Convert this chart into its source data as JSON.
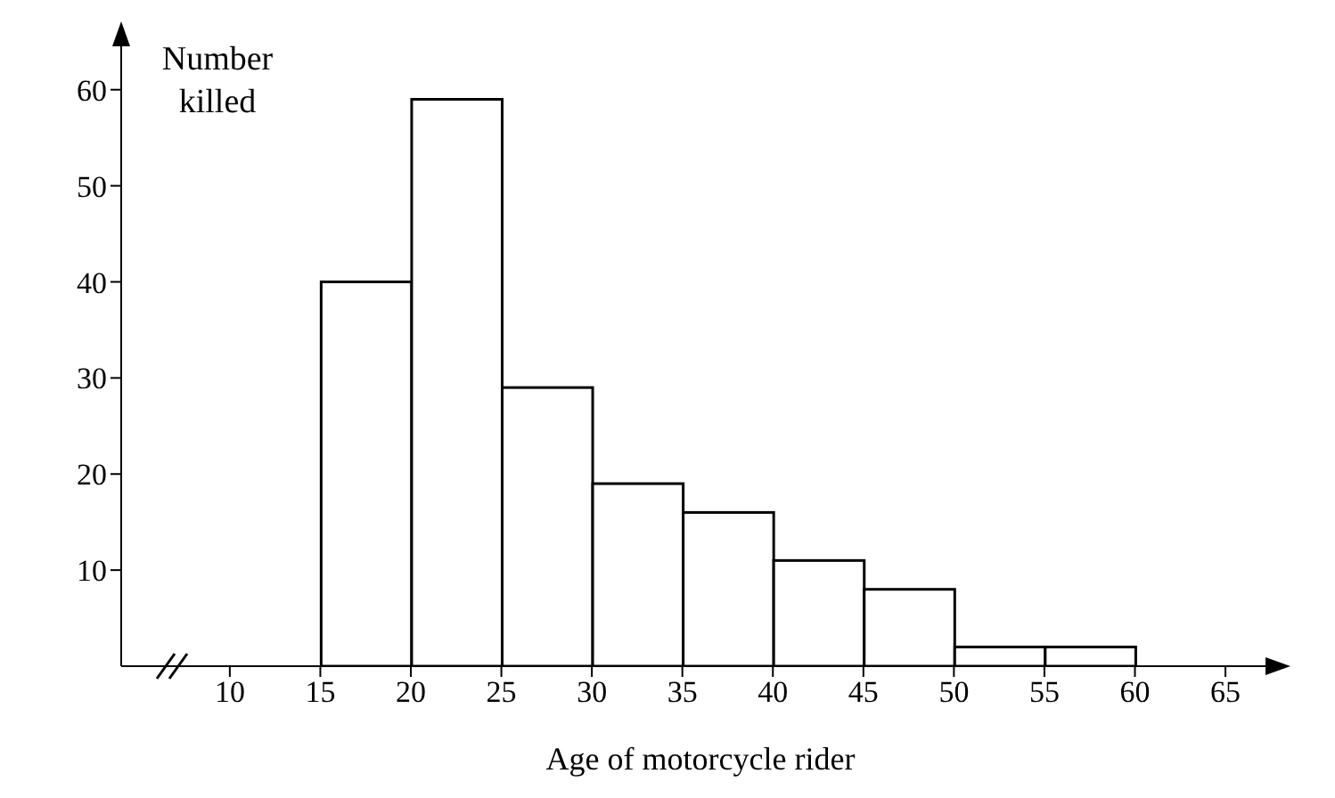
{
  "chart_data": {
    "type": "histogram",
    "xlabel": "Age of motorcycle rider",
    "ylabel": "Number killed",
    "bins": [
      15,
      20,
      25,
      30,
      35,
      40,
      45,
      50,
      55,
      60
    ],
    "values": [
      40,
      59,
      29,
      19,
      16,
      11,
      8,
      2,
      2
    ],
    "color": "#ffffff",
    "xlim": [
      4,
      68
    ],
    "xticks": [
      10,
      15,
      20,
      25,
      30,
      35,
      40,
      45,
      50,
      55,
      60,
      65
    ],
    "ylim": [
      0,
      66
    ],
    "yticks": [
      10,
      20,
      30,
      40,
      50,
      60
    ],
    "grid": false
  }
}
